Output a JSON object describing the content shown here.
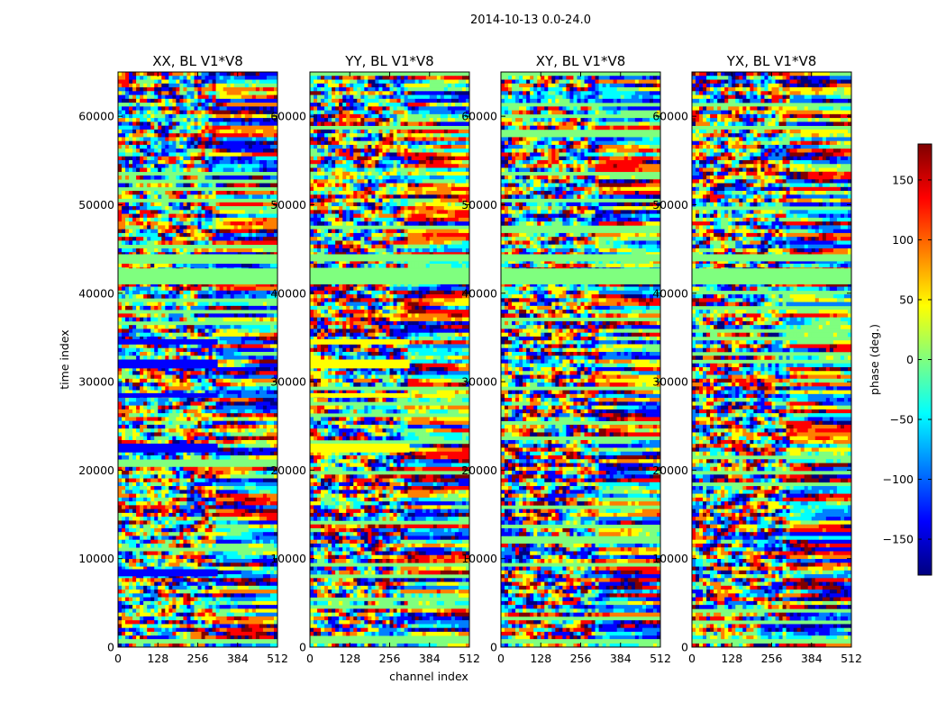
{
  "figure": {
    "suptitle": "2014-10-13 0.0-24.0"
  },
  "colors": {
    "jet": [
      "#00007f",
      "#0000ff",
      "#007fff",
      "#00ffff",
      "#7fff7f",
      "#ffff00",
      "#ff7f00",
      "#ff0000",
      "#7f0000"
    ],
    "flag_green": "#7fff7f"
  },
  "chart_data": [
    {
      "type": "heatmap",
      "title": "XX, BL V1*V8",
      "xlabel": "",
      "ylabel": "time index",
      "xlim": [
        0,
        512
      ],
      "ylim": [
        0,
        65000
      ],
      "xticks": [
        0,
        128,
        256,
        384,
        512
      ],
      "yticks": [
        0,
        10000,
        20000,
        30000,
        40000,
        50000,
        60000
      ],
      "value": "phase (deg.)",
      "zlim": [
        -180,
        180
      ],
      "flagged_bands": [
        [
          41000,
          42800
        ],
        [
          43600,
          44400
        ],
        [
          400,
          900
        ]
      ],
      "solid_bands": [
        {
          "y": [
            22000,
            23000
          ],
          "x": [
            0,
            320
          ],
          "phase": -150
        },
        {
          "y": [
            31500,
            32500
          ],
          "x": [
            0,
            320
          ],
          "phase": -150
        },
        {
          "y": [
            28200,
            28700
          ],
          "x": [
            0,
            320
          ],
          "phase": -150
        },
        {
          "y": [
            34200,
            34800
          ],
          "x": [
            0,
            320
          ],
          "phase": -150
        },
        {
          "y": [
            8000,
            8800
          ],
          "x": [
            0,
            320
          ],
          "phase": -150
        }
      ]
    },
    {
      "type": "heatmap",
      "title": "YY, BL V1*V8",
      "xlabel": "channel index",
      "ylabel": "",
      "xlim": [
        0,
        512
      ],
      "ylim": [
        0,
        65000
      ],
      "xticks": [
        0,
        128,
        256,
        384,
        512
      ],
      "yticks": [
        0,
        10000,
        20000,
        30000,
        40000,
        50000,
        60000
      ],
      "value": "phase (deg.)",
      "zlim": [
        -180,
        180
      ],
      "flagged_bands": [
        [
          41000,
          42800
        ],
        [
          43600,
          44400
        ],
        [
          400,
          900
        ]
      ],
      "solid_bands": [
        {
          "y": [
            22000,
            23000
          ],
          "x": [
            0,
            320
          ],
          "phase": 40
        },
        {
          "y": [
            31500,
            32500
          ],
          "x": [
            0,
            320
          ],
          "phase": 40
        },
        {
          "y": [
            28200,
            28700
          ],
          "x": [
            0,
            320
          ],
          "phase": 40
        },
        {
          "y": [
            34200,
            34800
          ],
          "x": [
            0,
            320
          ],
          "phase": 40
        }
      ]
    },
    {
      "type": "heatmap",
      "title": "XY, BL V1*V8",
      "xlabel": "",
      "ylabel": "",
      "xlim": [
        0,
        512
      ],
      "ylim": [
        0,
        65000
      ],
      "xticks": [
        0,
        128,
        256,
        384,
        512
      ],
      "yticks": [
        0,
        10000,
        20000,
        30000,
        40000,
        50000,
        60000
      ],
      "value": "phase (deg.)",
      "zlim": [
        -180,
        180
      ],
      "flagged_bands": [
        [
          41000,
          42800
        ],
        [
          43600,
          44400
        ],
        [
          400,
          900
        ]
      ],
      "solid_bands": []
    },
    {
      "type": "heatmap",
      "title": "YX, BL V1*V8",
      "xlabel": "",
      "ylabel": "",
      "xlim": [
        0,
        512
      ],
      "ylim": [
        0,
        65000
      ],
      "xticks": [
        0,
        128,
        256,
        384,
        512
      ],
      "yticks": [
        0,
        10000,
        20000,
        30000,
        40000,
        50000,
        60000
      ],
      "value": "phase (deg.)",
      "zlim": [
        -180,
        180
      ],
      "flagged_bands": [
        [
          41000,
          42800
        ],
        [
          43600,
          44400
        ],
        [
          400,
          900
        ]
      ],
      "solid_bands": []
    }
  ],
  "colorbar": {
    "label": "phase (deg.)",
    "range": [
      -180,
      180
    ],
    "ticks": [
      -150,
      -100,
      -50,
      0,
      50,
      100,
      150
    ],
    "tick_labels": [
      "−150",
      "−100",
      "−50",
      "0",
      "50",
      "100",
      "150"
    ]
  }
}
